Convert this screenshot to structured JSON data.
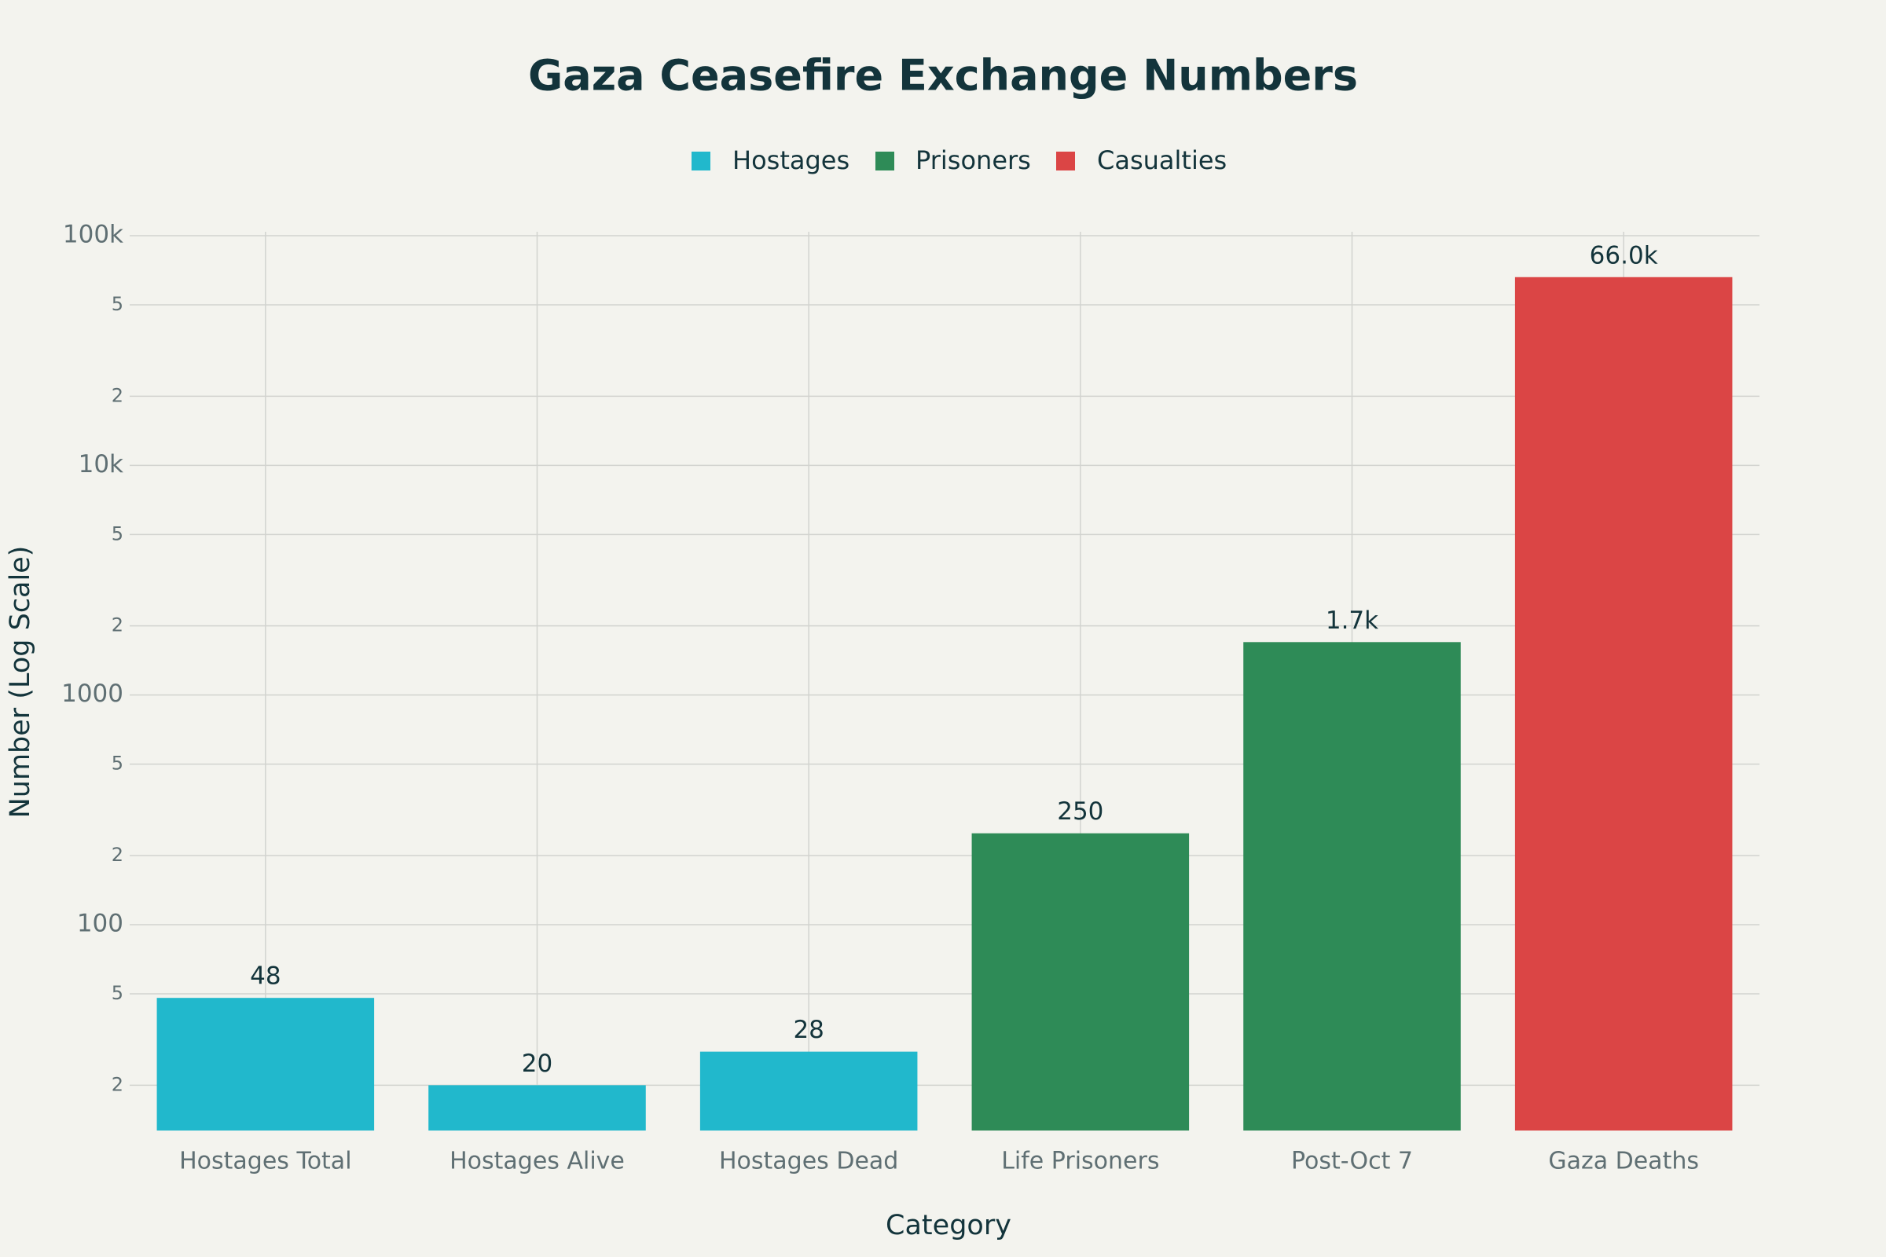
{
  "chart_data": {
    "type": "bar",
    "title": "Gaza Ceasefire Exchange Numbers",
    "x_label": "Category",
    "y_label": "Number (Log Scale)",
    "categories": [
      "Hostages Total",
      "Hostages Alive",
      "Hostages Dead",
      "Life Prisoners",
      "Post-Oct 7",
      "Gaza Deaths"
    ],
    "series": [
      {
        "name": "Hostages",
        "color": "#21b8cc",
        "values": [
          48,
          20,
          28,
          null,
          null,
          null
        ]
      },
      {
        "name": "Prisoners",
        "color": "#2e8b57",
        "values": [
          null,
          null,
          null,
          250,
          1700,
          null
        ],
        "value_labels": [
          null,
          null,
          null,
          "250",
          "1.7k",
          null
        ]
      },
      {
        "name": "Casualties",
        "color": "#db4545",
        "values": [
          null,
          null,
          null,
          null,
          null,
          66000
        ],
        "value_labels": [
          null,
          null,
          null,
          null,
          null,
          "66.0k"
        ]
      }
    ],
    "log_y": true,
    "grid": true,
    "legend": "top",
    "ylim": [
      12.7,
      100000
    ],
    "yticks": [
      {
        "value": 20,
        "label": "2"
      },
      {
        "value": 50,
        "label": "5"
      },
      100,
      {
        "value": 200,
        "label": "2"
      },
      {
        "value": 500,
        "label": "5"
      },
      1000,
      {
        "value": 2000,
        "label": "2"
      },
      {
        "value": 5000,
        "label": "5"
      },
      {
        "value": 10000,
        "label": "10k"
      },
      {
        "value": 20000,
        "label": "2"
      },
      {
        "value": 50000,
        "label": "5"
      },
      {
        "value": 100000,
        "label": "100k"
      }
    ]
  }
}
